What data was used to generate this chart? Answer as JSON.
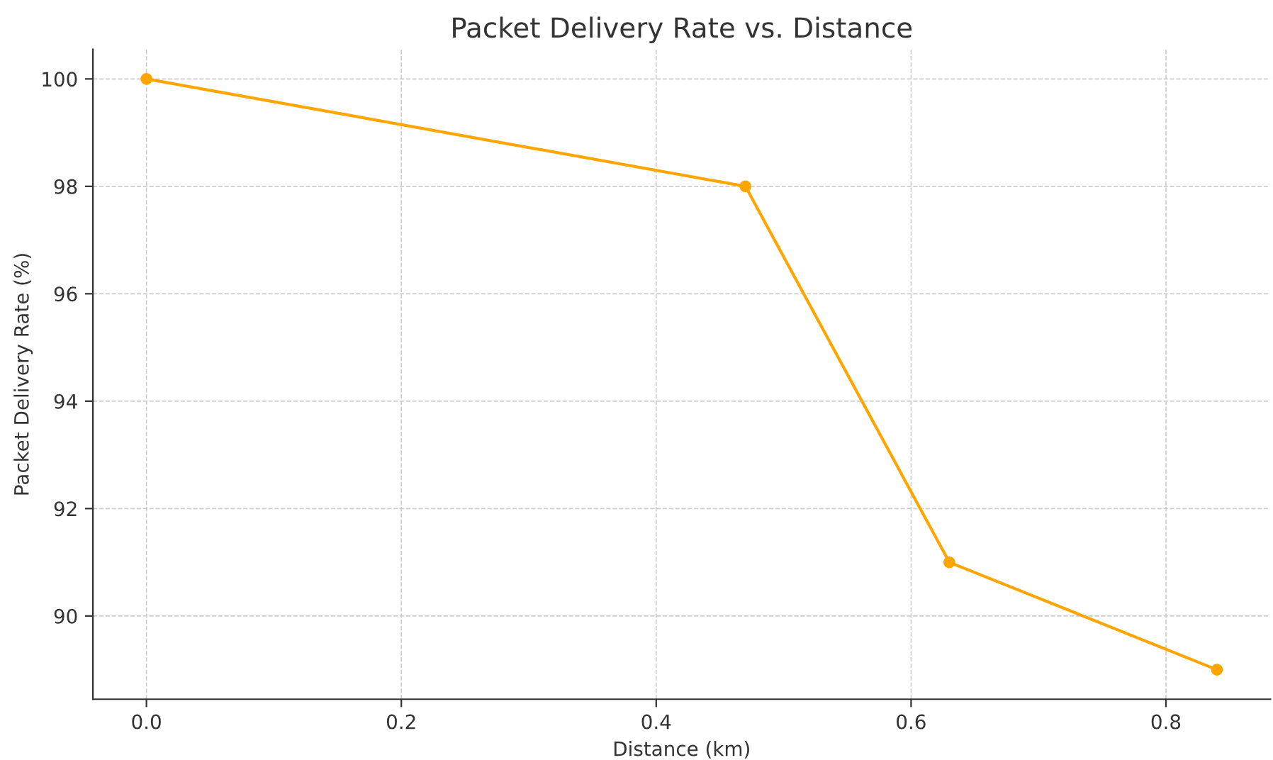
{
  "chart_data": {
    "type": "line",
    "title": "Packet Delivery Rate vs. Distance",
    "xlabel": "Distance (km)",
    "ylabel": "Packet Delivery Rate (%)",
    "x": [
      0.0,
      0.47,
      0.63,
      0.84
    ],
    "series": [
      {
        "color": "#ffa500",
        "values": [
          100,
          98,
          91,
          89
        ]
      }
    ],
    "xlim": [
      -0.042,
      0.882
    ],
    "ylim": [
      88.45,
      100.55
    ],
    "xticks": [
      {
        "value": 0,
        "label": "0.0"
      },
      0.2,
      0.4,
      0.6,
      0.8
    ],
    "yticks": [
      90,
      92,
      94,
      96,
      98,
      100
    ],
    "grid": true,
    "marker": "circle",
    "line_style": "solid",
    "legend": false
  }
}
